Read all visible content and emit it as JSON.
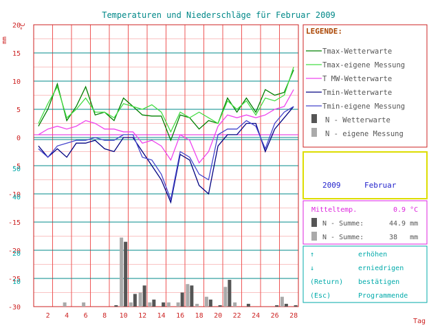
{
  "title": "Temperaturen und Niederschläge für Februar 2009",
  "units": {
    "mm": "mm",
    "celsius": "°C"
  },
  "x_axis_label": "Tag",
  "legend": {
    "heading": "LEGENDE:",
    "items": [
      {
        "label": "Tmax-Wetterwarte",
        "color": "#008000",
        "kind": "line"
      },
      {
        "label": "Tmax-eigene Messung",
        "color": "#44dd44",
        "kind": "line"
      },
      {
        "label": "T MW-Wetterwarte",
        "color": "#ee44ee",
        "kind": "line"
      },
      {
        "label": "Tmin-Wetterwarte",
        "color": "#000080",
        "kind": "line"
      },
      {
        "label": "Tmin-eigene Messung",
        "color": "#4444cc",
        "kind": "line"
      },
      {
        "label": "N - Wetterwarte",
        "color": "#555555",
        "kind": "bar"
      },
      {
        "label": "N - eigene Messung",
        "color": "#aaaaaa",
        "kind": "bar"
      }
    ]
  },
  "period": {
    "year": "2009",
    "month": "Februar"
  },
  "stats": {
    "mitteltemp_label": "Mitteltemp.",
    "mitteltemp_value": "0.9 °C",
    "rows": [
      {
        "label": "N - Summe:",
        "value": "44.9 mm"
      },
      {
        "label": "N - Summe:",
        "value": "38   mm"
      }
    ]
  },
  "controls": [
    {
      "key": "↑",
      "action": "erhöhen"
    },
    {
      "key": "↓",
      "action": "erniedrigen"
    },
    {
      "key": "(Return)",
      "action": "bestätigen"
    },
    {
      "key": "(Esc)",
      "action": "Programmende"
    }
  ],
  "colors": {
    "grid_red": "#ee5555",
    "grid_teal": "#008888",
    "axis_red": "#cc2222",
    "accent_cyan": "#00aaaa",
    "title_teal": "#008888",
    "magenta": "#dd22dd",
    "blue_text": "#2222cc",
    "legend_heading": "#aa4400"
  },
  "chart_data": {
    "type": "line",
    "x": [
      1,
      2,
      3,
      4,
      5,
      6,
      7,
      8,
      9,
      10,
      11,
      12,
      13,
      14,
      15,
      16,
      17,
      18,
      19,
      20,
      21,
      22,
      23,
      24,
      25,
      26,
      27,
      28
    ],
    "x_ticks": [
      2,
      4,
      6,
      8,
      10,
      12,
      14,
      16,
      18,
      20,
      22,
      24,
      26,
      28
    ],
    "temp_ticks": [
      20,
      15,
      10,
      5,
      0,
      -5,
      -10,
      -15,
      -20,
      -25,
      -30
    ],
    "temp_range": [
      -30,
      20
    ],
    "precip_ticks": [
      50,
      40,
      20,
      10
    ],
    "precip_range": [
      0,
      100
    ],
    "series": [
      {
        "name": "Tmax-Wetterwarte",
        "color": "#008000",
        "values": [
          2,
          5,
          9.5,
          3,
          5.5,
          9,
          4,
          4.5,
          3,
          7,
          5.5,
          4,
          3.8,
          3.8,
          -0.5,
          4,
          3.5,
          1.5,
          3,
          2.5,
          7,
          4.5,
          7,
          4.5,
          8.5,
          7.5,
          8,
          12
        ]
      },
      {
        "name": "Tmax-eigene Messung",
        "color": "#44dd44",
        "values": [
          2.5,
          6,
          9,
          3.5,
          5,
          7,
          4.5,
          4.5,
          3.5,
          6,
          5.5,
          5,
          5.8,
          4.5,
          1,
          4.5,
          3.5,
          4.5,
          3.5,
          2.5,
          6.5,
          5,
          6.5,
          4,
          7,
          6.5,
          7.5,
          12.5
        ]
      },
      {
        "name": "T MW-Wetterwarte",
        "color": "#ee44ee",
        "values": [
          0.5,
          1.5,
          2,
          1.5,
          2,
          3,
          2.5,
          1.5,
          1.5,
          1,
          1,
          -1,
          -0.5,
          -1.5,
          -4,
          0.5,
          -0.5,
          -4.5,
          -2.5,
          2,
          4,
          3.5,
          4,
          3.5,
          4,
          5,
          5.5,
          8.5
        ]
      },
      {
        "name": "Tmin-Wetterwarte",
        "color": "#000080",
        "values": [
          -1.5,
          -3.5,
          -2,
          -3.5,
          -1,
          -1,
          -0.5,
          -2,
          -2.5,
          0,
          0,
          -2.5,
          -5,
          -7.5,
          -11.5,
          -3,
          -4,
          -8.5,
          -10,
          -1.5,
          0.5,
          0.5,
          2.5,
          2.5,
          -2.5,
          1.5,
          3.5,
          5.5
        ]
      },
      {
        "name": "Tmin-eigene Messung",
        "color": "#4444cc",
        "values": [
          -2,
          -3.5,
          -1.5,
          -1,
          -0.5,
          -0.5,
          0,
          -0.5,
          -0.5,
          0.5,
          0.5,
          -3.5,
          -4,
          -6.5,
          -11,
          -2.5,
          -3.5,
          -6.5,
          -7.5,
          0.5,
          1.5,
          1.5,
          3,
          2,
          -2,
          2.5,
          4.5,
          5.5
        ]
      }
    ],
    "bars": [
      {
        "name": "N - Wetterwarte",
        "color": "#555555",
        "values": [
          0,
          0,
          0,
          0,
          0,
          0,
          0,
          0,
          0.5,
          23,
          4.5,
          7.5,
          2.5,
          1.5,
          0,
          5,
          7.5,
          0,
          2.5,
          0.5,
          9.5,
          0,
          1,
          0,
          0,
          0.5,
          1,
          0.5
        ]
      },
      {
        "name": "N - eigene Messung",
        "color": "#aaaaaa",
        "values": [
          0,
          0,
          0,
          1.5,
          0,
          1.5,
          0,
          0,
          0,
          24.5,
          1.5,
          5,
          1.5,
          0,
          1.5,
          1.5,
          8,
          1,
          3.5,
          0,
          7,
          1.5,
          0,
          0,
          0,
          0,
          3.5,
          0
        ]
      }
    ]
  }
}
